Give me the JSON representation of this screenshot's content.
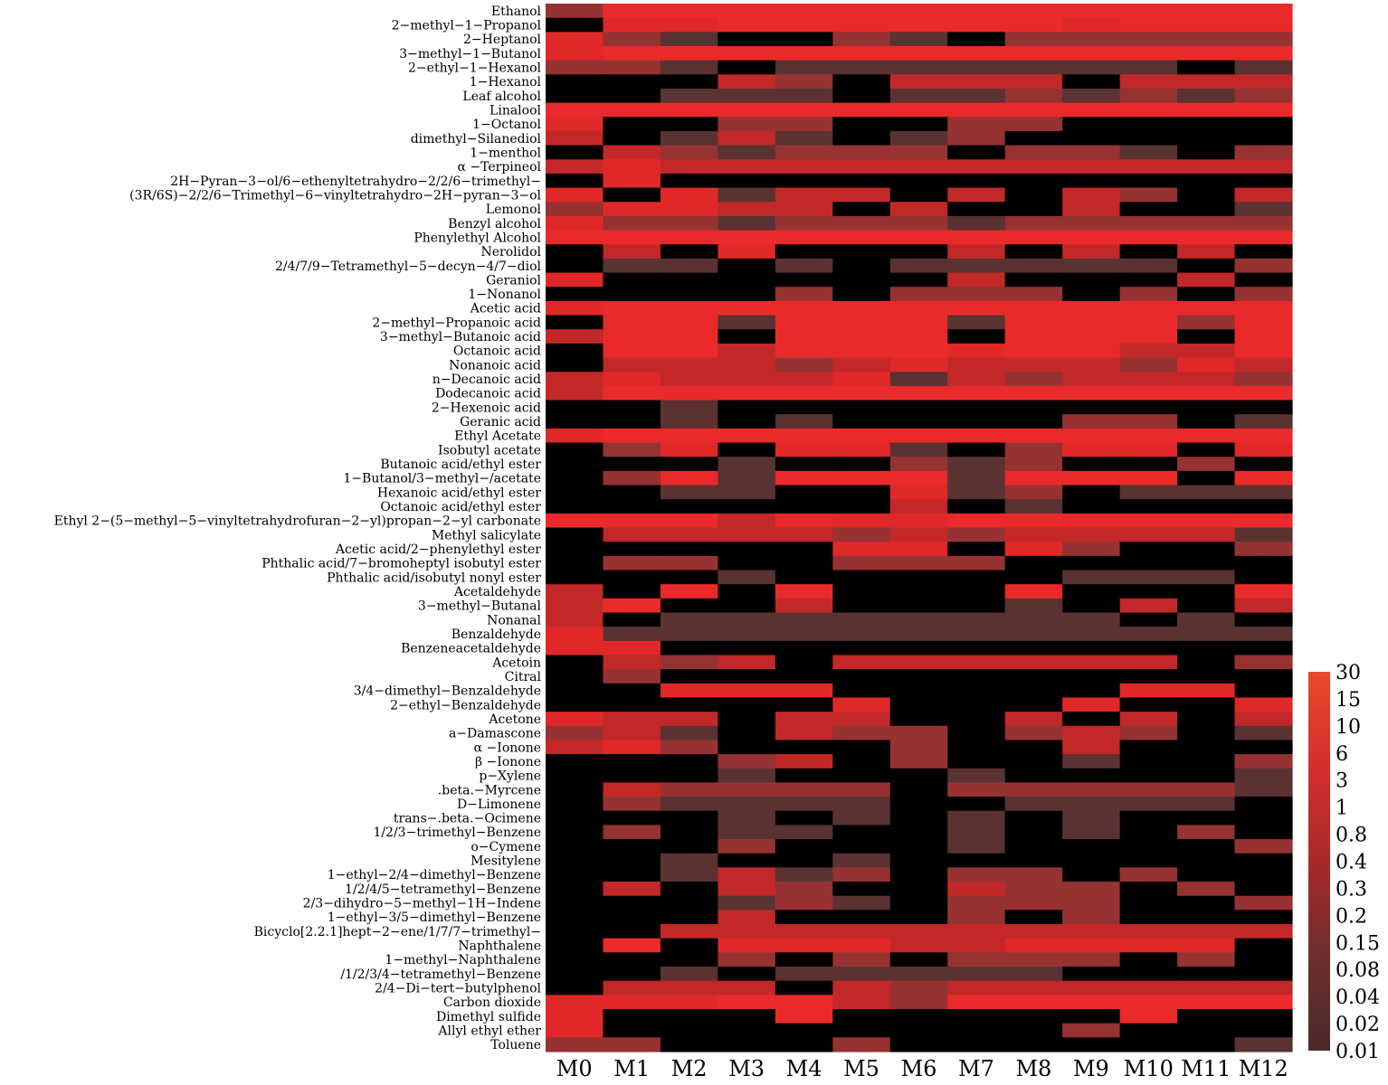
{
  "chart_data": {
    "type": "heatmap",
    "title": "",
    "xlabel": "",
    "ylabel": "",
    "columns": [
      "M0",
      "M1",
      "M2",
      "M3",
      "M4",
      "M5",
      "M6",
      "M7",
      "M8",
      "M9",
      "M10",
      "M11",
      "M12"
    ],
    "rows": [
      "Ethanol",
      "2−methyl−1−Propanol",
      "2−Heptanol",
      "3−methyl−1−Butanol",
      "2−ethyl−1−Hexanol",
      "1−Hexanol",
      "Leaf alcohol",
      "Linalool",
      "1−Octanol",
      "dimethyl−Silanediol",
      "1−menthol",
      "α −Terpineol",
      "2H−Pyran−3−ol/6−ethenyltetrahydro−2/2/6−trimethyl−",
      "(3R/6S)−2/2/6−Trimethyl−6−vinyltetrahydro−2H−pyran−3−ol",
      "Lemonol",
      "Benzyl alcohol",
      "Phenylethyl Alcohol",
      "Nerolidol",
      "2/4/7/9−Tetramethyl−5−decyn−4/7−diol",
      "Geraniol",
      "1−Nonanol",
      "Acetic acid",
      "2−methyl−Propanoic acid",
      "3−methyl−Butanoic acid",
      "Octanoic acid",
      "Nonanoic acid",
      "n−Decanoic acid",
      "Dodecanoic acid",
      "2−Hexenoic acid",
      "Geranic acid",
      "Ethyl Acetate",
      "Isobutyl acetate",
      "Butanoic acid/ethyl ester",
      "1−Butanol/3−methyl−/acetate",
      "Hexanoic acid/ethyl ester",
      "Octanoic acid/ethyl ester",
      "Ethyl 2−(5−methyl−5−vinyltetrahydrofuran−2−yl)propan−2−yl carbonate",
      "Methyl salicylate",
      "Acetic acid/2−phenylethyl ester",
      "Phthalic acid/7−bromoheptyl isobutyl ester",
      "Phthalic acid/isobutyl nonyl ester",
      "Acetaldehyde",
      "3−methyl−Butanal",
      "Nonanal",
      "Benzaldehyde",
      "Benzeneacetaldehyde",
      "Acetoin",
      "Citral",
      "3/4−dimethyl−Benzaldehyde",
      "2−ethyl−Benzaldehyde",
      "Acetone",
      "a−Damascone",
      "α −Ionone",
      "β −Ionone",
      "p−Xylene",
      ".beta.−Myrcene",
      "D−Limonene",
      "trans−.beta.−Ocimene",
      "1/2/3−trimethyl−Benzene",
      "o−Cymene",
      "Mesitylene",
      "1−ethyl−2/4−dimethyl−Benzene",
      "1/2/4/5−tetramethyl−Benzene",
      "2/3−dihydro−5−methyl−1H−Indene",
      "1−ethyl−3/5−dimethyl−Benzene",
      "Bicyclo[2.2.1]hept−2−ene/1/7/7−trimethyl−",
      "Naphthalene",
      "1−methyl−Naphthalene",
      "/1/2/3/4−tetramethyl−Benzene",
      "2/4−Di−tert−butylphenol",
      "Carbon dioxide",
      "Dimethyl sulfide",
      "Allyl ethyl ether",
      "Toluene"
    ],
    "values": [
      [
        0.1,
        30,
        30,
        30,
        30,
        15,
        30,
        30,
        30,
        30,
        30,
        30,
        30
      ],
      [
        0,
        0.4,
        0.4,
        15,
        15,
        15,
        30,
        30,
        15,
        0.4,
        15,
        15,
        15
      ],
      [
        0.3,
        0.08,
        0.04,
        0,
        0,
        0.08,
        0.04,
        0,
        0.08,
        0.08,
        0.08,
        0.08,
        0.08
      ],
      [
        0.3,
        30,
        15,
        30,
        15,
        30,
        15,
        30,
        15,
        30,
        15,
        30,
        15
      ],
      [
        0.08,
        0.08,
        0.04,
        0,
        0.04,
        0.04,
        0.04,
        0.04,
        0.04,
        0.04,
        0.04,
        0,
        0.04
      ],
      [
        0,
        0,
        0,
        0.15,
        0.08,
        0,
        0.15,
        0.15,
        0.15,
        0,
        0.15,
        0.15,
        0.15
      ],
      [
        0,
        0,
        0.04,
        0.04,
        0.04,
        0,
        0.04,
        0.04,
        0.08,
        0.04,
        0.08,
        0.04,
        0.08
      ],
      [
        30,
        30,
        30,
        30,
        30,
        30,
        30,
        30,
        30,
        30,
        30,
        30,
        30
      ],
      [
        0.4,
        0,
        0,
        0.08,
        0.08,
        0,
        0,
        0.08,
        0.08,
        0,
        0,
        0,
        0
      ],
      [
        0.15,
        0,
        0.04,
        0.15,
        0.04,
        0,
        0.04,
        0.08,
        0,
        0,
        0,
        0,
        0
      ],
      [
        0,
        0.15,
        0.08,
        0.04,
        0.08,
        0.08,
        0.08,
        0,
        0.08,
        0.08,
        0.04,
        0,
        0.08
      ],
      [
        0.15,
        0.3,
        0.15,
        0.15,
        0.15,
        0.15,
        0.15,
        0.15,
        0.15,
        0.15,
        0.15,
        0.15,
        0.15
      ],
      [
        0,
        0.3,
        0,
        0,
        0,
        0,
        0,
        0,
        0,
        0,
        0,
        0,
        0
      ],
      [
        0.3,
        0,
        0.3,
        0.04,
        0.15,
        0.15,
        0,
        0.15,
        0,
        0.15,
        0.08,
        0,
        0.15
      ],
      [
        0.08,
        0.3,
        0.3,
        0.15,
        0.15,
        0,
        0.15,
        0,
        0,
        0.15,
        0,
        0,
        0.04
      ],
      [
        0.3,
        0.08,
        0.08,
        0.04,
        0.08,
        0.08,
        0.08,
        0.04,
        0.08,
        0.08,
        0.08,
        0.08,
        0.08
      ],
      [
        30,
        30,
        30,
        30,
        30,
        30,
        30,
        30,
        30,
        30,
        30,
        30,
        30
      ],
      [
        0,
        0.15,
        0,
        0.3,
        0,
        0,
        0,
        0.15,
        0,
        0.15,
        0,
        0.15,
        0
      ],
      [
        0,
        0.04,
        0.04,
        0,
        0.04,
        0,
        0.04,
        0.04,
        0.04,
        0.04,
        0.04,
        0,
        0.08
      ],
      [
        0.3,
        0,
        0,
        0,
        0,
        0,
        0,
        0.15,
        0,
        0,
        0,
        0.15,
        0
      ],
      [
        0,
        0,
        0,
        0,
        0.08,
        0,
        0.08,
        0.08,
        0.08,
        0,
        0.08,
        0,
        0.08
      ],
      [
        0.3,
        30,
        30,
        30,
        30,
        30,
        30,
        30,
        30,
        30,
        30,
        30,
        30
      ],
      [
        0,
        30,
        30,
        0.04,
        15,
        15,
        15,
        0.04,
        15,
        15,
        15,
        0.08,
        15
      ],
      [
        0.15,
        30,
        15,
        0,
        15,
        30,
        30,
        0,
        30,
        30,
        15,
        0,
        15
      ],
      [
        0,
        15,
        15,
        0.15,
        15,
        15,
        15,
        0.3,
        15,
        15,
        0.15,
        0.15,
        15
      ],
      [
        0,
        0.15,
        0.15,
        0.15,
        0.08,
        0.15,
        0.3,
        0.15,
        0.15,
        0.15,
        0.08,
        0.3,
        0.15
      ],
      [
        0.15,
        0.3,
        0.15,
        0.15,
        0.15,
        0.3,
        0.04,
        0.15,
        0.08,
        0.15,
        0.15,
        0.15,
        0.08
      ],
      [
        0.15,
        15,
        15,
        15,
        15,
        15,
        15,
        15,
        15,
        15,
        15,
        15,
        15
      ],
      [
        0,
        0,
        0.04,
        0,
        0,
        0,
        0,
        0,
        0,
        0,
        0,
        0,
        0
      ],
      [
        0,
        0,
        0.04,
        0,
        0.04,
        0,
        0,
        0,
        0,
        0.08,
        0.08,
        0,
        0.04
      ],
      [
        0.3,
        15,
        30,
        30,
        30,
        30,
        30,
        30,
        30,
        30,
        30,
        30,
        30
      ],
      [
        0,
        0.08,
        0.3,
        0,
        0.3,
        0.3,
        0.04,
        0,
        0.08,
        0.3,
        0.3,
        0,
        0.3
      ],
      [
        0,
        0,
        0,
        0.04,
        0,
        0,
        0.08,
        0.04,
        0.08,
        0,
        0,
        0.08,
        0
      ],
      [
        0,
        0.08,
        30,
        0.04,
        30,
        30,
        15,
        0.04,
        30,
        30,
        30,
        0,
        30
      ],
      [
        0,
        0,
        0.04,
        0.04,
        0,
        0,
        0.3,
        0.04,
        0.08,
        0,
        0.04,
        0.04,
        0.04
      ],
      [
        0,
        0,
        0,
        0,
        0,
        0,
        0.15,
        0,
        0.04,
        0,
        0,
        0,
        0
      ],
      [
        30,
        15,
        15,
        0.15,
        15,
        0.3,
        0.3,
        15,
        15,
        15,
        15,
        15,
        15
      ],
      [
        0,
        0.15,
        0.15,
        0.15,
        0.15,
        0.08,
        0.15,
        0.08,
        0.15,
        0.15,
        0.15,
        0.15,
        0.04
      ],
      [
        0,
        0,
        0,
        0,
        0,
        0.3,
        0.3,
        0,
        0.3,
        0.08,
        0,
        0,
        0.08
      ],
      [
        0,
        0.08,
        0.08,
        0,
        0,
        0.08,
        0.08,
        0.08,
        0,
        0,
        0,
        0,
        0
      ],
      [
        0,
        0,
        0,
        0.04,
        0,
        0,
        0,
        0,
        0,
        0.04,
        0.04,
        0.04,
        0
      ],
      [
        0.15,
        0,
        30,
        0,
        30,
        0,
        0,
        0,
        30,
        0,
        0,
        0,
        30
      ],
      [
        0.15,
        15,
        0,
        0,
        0.15,
        0,
        0,
        0,
        0.04,
        0,
        0.15,
        0,
        0.15
      ],
      [
        0.15,
        0,
        0.04,
        0.04,
        0.04,
        0.04,
        0.04,
        0.04,
        0.04,
        0.04,
        0,
        0.04,
        0
      ],
      [
        0.3,
        0.04,
        0.04,
        0.04,
        0.04,
        0.04,
        0.04,
        0.04,
        0.04,
        0.04,
        0.04,
        0.04,
        0.04
      ],
      [
        0.3,
        0.3,
        0,
        0,
        0,
        0,
        0,
        0,
        0,
        0,
        0,
        0,
        0
      ],
      [
        0,
        0.15,
        0.08,
        0.15,
        0,
        0.15,
        0.15,
        0.15,
        0.15,
        0.15,
        0.15,
        0,
        0.08
      ],
      [
        0,
        0.08,
        0,
        0,
        0,
        0,
        0,
        0,
        0,
        0,
        0,
        0,
        0
      ],
      [
        0,
        0,
        0.3,
        0.3,
        0.3,
        0,
        0,
        0,
        0,
        0,
        0.3,
        0.3,
        0
      ],
      [
        0,
        0,
        0,
        0,
        0,
        0.3,
        0,
        0,
        0,
        0.3,
        0,
        0,
        0.3
      ],
      [
        0.3,
        0.15,
        0.15,
        0,
        0.15,
        0.15,
        0,
        0,
        0.15,
        0,
        0.15,
        0,
        0.15
      ],
      [
        0.08,
        0.15,
        0.04,
        0,
        0.15,
        0.08,
        0.08,
        0,
        0.08,
        0.15,
        0.08,
        0,
        0.04
      ],
      [
        0.15,
        0.3,
        0.08,
        0,
        0,
        0,
        0.08,
        0,
        0,
        0.15,
        0,
        0,
        0
      ],
      [
        0,
        0,
        0,
        0.08,
        0.15,
        0,
        0.08,
        0,
        0,
        0.04,
        0,
        0,
        0.08
      ],
      [
        0,
        0,
        0,
        0.04,
        0,
        0,
        0,
        0.04,
        0,
        0,
        0,
        0,
        0.04
      ],
      [
        0,
        0.15,
        0.08,
        0.08,
        0.08,
        0.08,
        0,
        0.08,
        0.08,
        0.08,
        0.08,
        0.08,
        0.04
      ],
      [
        0,
        0.08,
        0.04,
        0.04,
        0.04,
        0.04,
        0,
        0,
        0.04,
        0.04,
        0.04,
        0.04,
        0
      ],
      [
        0,
        0,
        0,
        0.04,
        0,
        0.04,
        0,
        0.04,
        0,
        0.04,
        0,
        0,
        0
      ],
      [
        0,
        0.08,
        0,
        0.04,
        0.04,
        0,
        0,
        0.04,
        0,
        0.04,
        0,
        0.08,
        0
      ],
      [
        0,
        0,
        0,
        0.08,
        0,
        0,
        0,
        0.04,
        0,
        0,
        0,
        0,
        0.08
      ],
      [
        0,
        0,
        0.04,
        0,
        0,
        0.04,
        0,
        0,
        0,
        0,
        0,
        0,
        0
      ],
      [
        0,
        0,
        0.04,
        0.15,
        0.04,
        0.08,
        0,
        0.08,
        0.08,
        0,
        0.08,
        0,
        0
      ],
      [
        0,
        0.15,
        0,
        0.15,
        0.08,
        0,
        0,
        0.15,
        0.08,
        0.08,
        0,
        0.08,
        0
      ],
      [
        0,
        0,
        0,
        0.04,
        0.08,
        0.04,
        0,
        0.08,
        0.08,
        0.08,
        0,
        0,
        0.08
      ],
      [
        0,
        0,
        0,
        0.15,
        0,
        0,
        0,
        0.08,
        0,
        0.08,
        0,
        0,
        0
      ],
      [
        0,
        0,
        0.15,
        0.15,
        0.15,
        0.15,
        0.15,
        0.15,
        0.15,
        0.15,
        0.15,
        0.15,
        0.15
      ],
      [
        0,
        30,
        0,
        0.3,
        0.3,
        0.3,
        0.15,
        0.15,
        0.3,
        0.3,
        0.3,
        0.3,
        0
      ],
      [
        0,
        0,
        0,
        0.08,
        0,
        0.08,
        0,
        0.08,
        0.08,
        0.08,
        0,
        0.08,
        0
      ],
      [
        0,
        0,
        0.04,
        0,
        0.04,
        0.04,
        0.04,
        0.04,
        0.04,
        0,
        0,
        0,
        0
      ],
      [
        0,
        0.15,
        0.15,
        0.15,
        0,
        0.15,
        0.08,
        0.15,
        0.15,
        0.15,
        0.15,
        0.15,
        0.15
      ],
      [
        0.3,
        0.3,
        0.3,
        30,
        30,
        0.15,
        0.08,
        30,
        30,
        30,
        30,
        30,
        30
      ],
      [
        0.3,
        0,
        0,
        0,
        30,
        0,
        0,
        0,
        0,
        0,
        30,
        0,
        0
      ],
      [
        0.3,
        0,
        0,
        0,
        0,
        0,
        0,
        0,
        0,
        0.08,
        0,
        0,
        0
      ],
      [
        0.08,
        0.08,
        0,
        0,
        0,
        0.08,
        0,
        0,
        0,
        0,
        0,
        0,
        0.04
      ]
    ],
    "legend": {
      "placement": "right",
      "labels": [
        "30",
        "15",
        "10",
        "6",
        "3",
        "1",
        "0.8",
        "0.4",
        "0.3",
        "0.2",
        "0.15",
        "0.08",
        "0.04",
        "0.02",
        "0.01"
      ]
    },
    "colors": {
      "zero": "#000000",
      "scale": [
        "#5a3232",
        "#963232",
        "#c22828",
        "#e02828",
        "#ea2a2a"
      ],
      "legend_gradient": [
        "#e84a2a",
        "#d42e2e",
        "#a82a2a",
        "#6e2e2e",
        "#4a2a2a"
      ]
    },
    "grid": false
  }
}
